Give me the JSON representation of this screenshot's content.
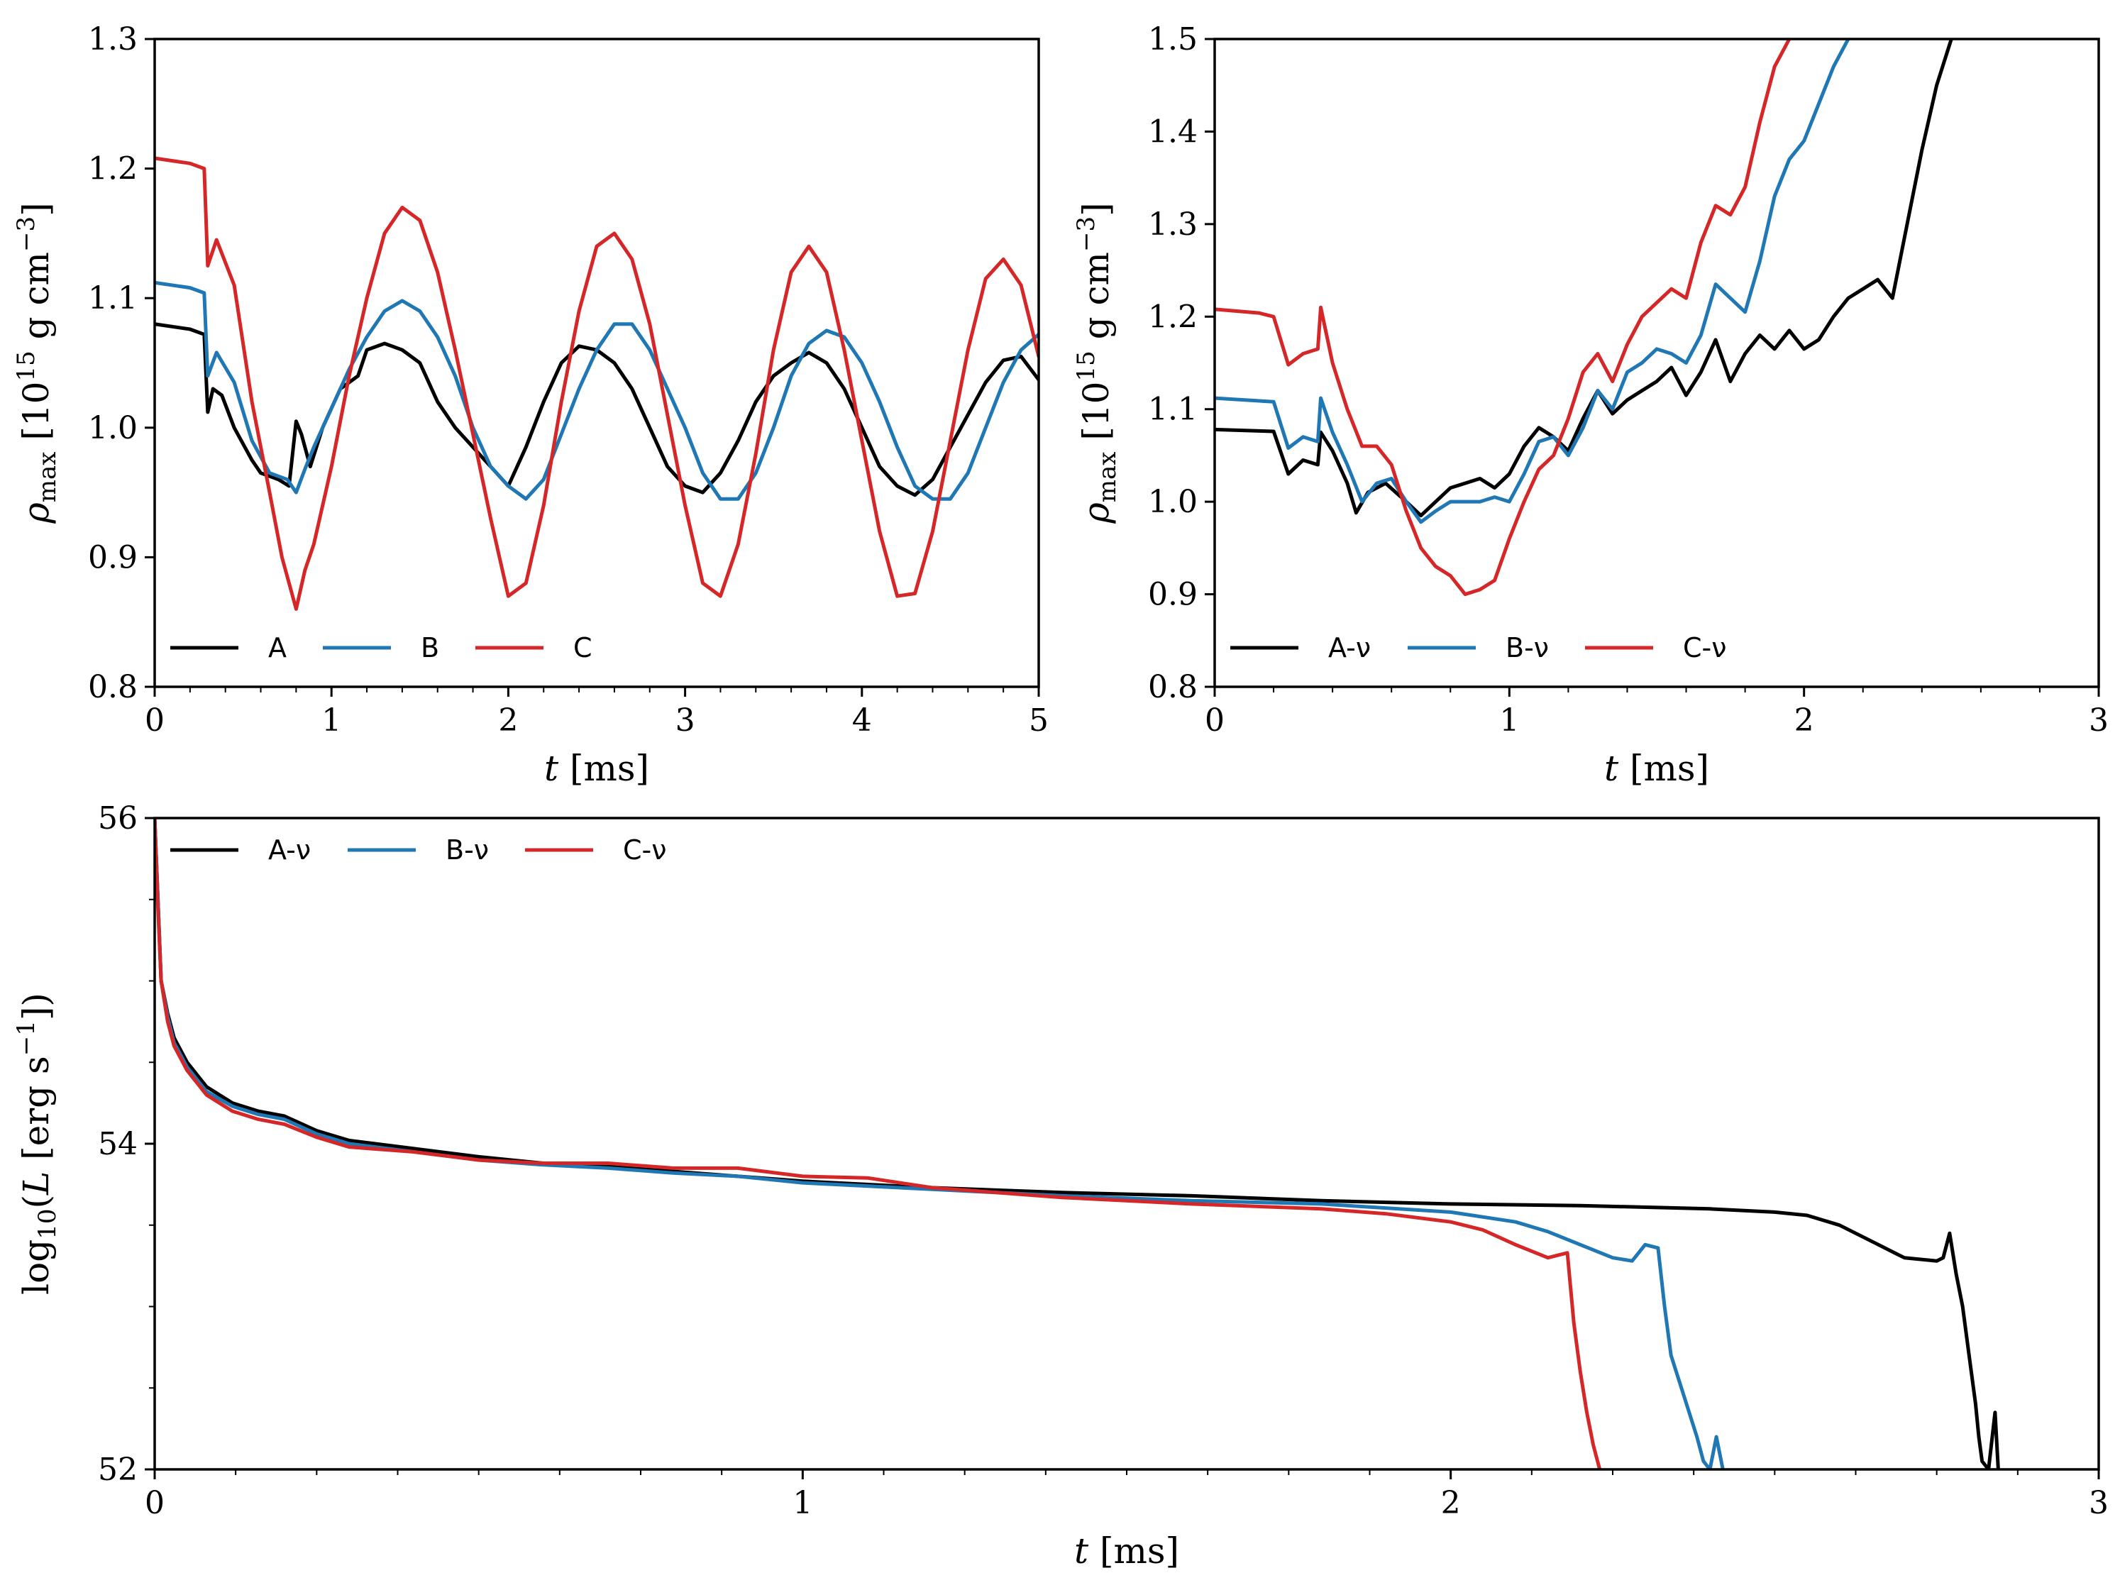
{
  "colors": {
    "A": "#000000",
    "B": "#1f77b4",
    "C": "#d62728"
  },
  "chart_data": [
    {
      "type": "line",
      "panel": "top-left",
      "xlabel_var": "t",
      "xlabel_unit": "[ms]",
      "ylabel_var": "ρ",
      "ylabel_sub": "max",
      "ylabel_unit": "[10",
      "ylabel_unit_exp": "15",
      "ylabel_unit_rest": "g cm",
      "ylabel_unit_exp2": "−3",
      "ylabel_close": "]",
      "xlim": [
        0,
        5
      ],
      "ylim": [
        0.8,
        1.3
      ],
      "xticks": [
        "0",
        "1",
        "2",
        "3",
        "4",
        "5"
      ],
      "yticks": [
        "0.8",
        "0.9",
        "1.0",
        "1.1",
        "1.2",
        "1.3"
      ],
      "legend": "bottom-left",
      "series": [
        {
          "name": "A",
          "color_key": "A",
          "x": [
            0,
            0.2,
            0.28,
            0.3,
            0.33,
            0.38,
            0.45,
            0.55,
            0.6,
            0.7,
            0.76,
            0.8,
            0.83,
            0.88,
            0.95,
            1.05,
            1.15,
            1.2,
            1.3,
            1.4,
            1.5,
            1.6,
            1.7,
            1.8,
            1.9,
            2.0,
            2.1,
            2.2,
            2.3,
            2.4,
            2.5,
            2.6,
            2.7,
            2.8,
            2.9,
            3.0,
            3.1,
            3.2,
            3.3,
            3.4,
            3.5,
            3.6,
            3.7,
            3.8,
            3.9,
            4.0,
            4.1,
            4.2,
            4.3,
            4.4,
            4.5,
            4.6,
            4.7,
            4.8,
            4.9,
            5.0
          ],
          "y": [
            1.08,
            1.076,
            1.072,
            1.012,
            1.03,
            1.025,
            1.0,
            0.975,
            0.965,
            0.96,
            0.955,
            1.005,
            0.995,
            0.97,
            1.0,
            1.03,
            1.04,
            1.06,
            1.065,
            1.06,
            1.05,
            1.02,
            1.0,
            0.985,
            0.97,
            0.955,
            0.985,
            1.02,
            1.05,
            1.063,
            1.06,
            1.05,
            1.03,
            1.0,
            0.97,
            0.955,
            0.95,
            0.965,
            0.99,
            1.02,
            1.04,
            1.05,
            1.058,
            1.05,
            1.03,
            1.0,
            0.97,
            0.955,
            0.948,
            0.96,
            0.985,
            1.01,
            1.035,
            1.052,
            1.055,
            1.037
          ]
        },
        {
          "name": "B",
          "color_key": "B",
          "x": [
            0,
            0.2,
            0.28,
            0.3,
            0.35,
            0.45,
            0.55,
            0.65,
            0.75,
            0.8,
            0.85,
            0.9,
            1.0,
            1.1,
            1.2,
            1.3,
            1.4,
            1.5,
            1.6,
            1.7,
            1.8,
            1.9,
            2.0,
            2.1,
            2.2,
            2.3,
            2.4,
            2.5,
            2.6,
            2.7,
            2.8,
            2.9,
            3.0,
            3.1,
            3.2,
            3.3,
            3.4,
            3.5,
            3.6,
            3.7,
            3.8,
            3.9,
            4.0,
            4.1,
            4.2,
            4.3,
            4.4,
            4.5,
            4.6,
            4.7,
            4.8,
            4.9,
            5.0
          ],
          "y": [
            1.112,
            1.108,
            1.104,
            1.04,
            1.058,
            1.035,
            0.99,
            0.965,
            0.96,
            0.95,
            0.968,
            0.985,
            1.015,
            1.045,
            1.07,
            1.09,
            1.098,
            1.09,
            1.07,
            1.04,
            1.0,
            0.97,
            0.955,
            0.945,
            0.96,
            0.995,
            1.03,
            1.06,
            1.08,
            1.08,
            1.06,
            1.03,
            1.0,
            0.965,
            0.945,
            0.945,
            0.965,
            1.0,
            1.04,
            1.065,
            1.075,
            1.07,
            1.05,
            1.02,
            0.985,
            0.955,
            0.945,
            0.945,
            0.965,
            1.0,
            1.035,
            1.06,
            1.072
          ]
        },
        {
          "name": "C",
          "color_key": "C",
          "x": [
            0,
            0.2,
            0.28,
            0.3,
            0.35,
            0.45,
            0.55,
            0.65,
            0.72,
            0.8,
            0.85,
            0.9,
            1.0,
            1.1,
            1.2,
            1.3,
            1.4,
            1.5,
            1.6,
            1.7,
            1.8,
            1.9,
            2.0,
            2.1,
            2.2,
            2.3,
            2.4,
            2.5,
            2.6,
            2.7,
            2.8,
            2.9,
            3.0,
            3.1,
            3.2,
            3.3,
            3.4,
            3.5,
            3.6,
            3.7,
            3.8,
            3.9,
            4.0,
            4.1,
            4.2,
            4.3,
            4.4,
            4.5,
            4.6,
            4.7,
            4.8,
            4.9,
            5.0
          ],
          "y": [
            1.208,
            1.204,
            1.2,
            1.125,
            1.145,
            1.11,
            1.02,
            0.95,
            0.9,
            0.86,
            0.89,
            0.91,
            0.97,
            1.04,
            1.1,
            1.15,
            1.17,
            1.16,
            1.12,
            1.06,
            0.995,
            0.93,
            0.87,
            0.88,
            0.94,
            1.02,
            1.09,
            1.14,
            1.15,
            1.13,
            1.08,
            1.01,
            0.94,
            0.88,
            0.87,
            0.91,
            0.98,
            1.06,
            1.12,
            1.14,
            1.12,
            1.06,
            0.99,
            0.92,
            0.87,
            0.872,
            0.92,
            0.99,
            1.06,
            1.115,
            1.13,
            1.11,
            1.055
          ]
        }
      ]
    },
    {
      "type": "line",
      "panel": "top-right",
      "xlabel_var": "t",
      "xlabel_unit": "[ms]",
      "ylabel_var": "ρ",
      "ylabel_sub": "max",
      "ylabel_unit": "[10",
      "ylabel_unit_exp": "15",
      "ylabel_unit_rest": "g cm",
      "ylabel_unit_exp2": "−3",
      "ylabel_close": "]",
      "xlim": [
        0,
        3
      ],
      "ylim": [
        0.8,
        1.5
      ],
      "xticks": [
        "0",
        "1",
        "2",
        "3"
      ],
      "yticks": [
        "0.8",
        "0.9",
        "1.0",
        "1.1",
        "1.2",
        "1.3",
        "1.4",
        "1.5"
      ],
      "legend": "bottom-left",
      "series": [
        {
          "name": "A-ν",
          "color_key": "A",
          "x": [
            0,
            0.2,
            0.25,
            0.3,
            0.35,
            0.36,
            0.4,
            0.45,
            0.48,
            0.52,
            0.58,
            0.65,
            0.7,
            0.75,
            0.8,
            0.85,
            0.9,
            0.95,
            1.0,
            1.05,
            1.1,
            1.15,
            1.2,
            1.25,
            1.3,
            1.35,
            1.4,
            1.45,
            1.5,
            1.55,
            1.6,
            1.65,
            1.7,
            1.75,
            1.8,
            1.85,
            1.9,
            1.95,
            2.0,
            2.05,
            2.1,
            2.15,
            2.2,
            2.25,
            2.3,
            2.35,
            2.4,
            2.45,
            2.5
          ],
          "y": [
            1.078,
            1.076,
            1.03,
            1.045,
            1.04,
            1.075,
            1.055,
            1.02,
            0.988,
            1.01,
            1.02,
            1.0,
            0.985,
            1.0,
            1.015,
            1.02,
            1.025,
            1.015,
            1.03,
            1.06,
            1.08,
            1.07,
            1.055,
            1.09,
            1.12,
            1.095,
            1.11,
            1.12,
            1.13,
            1.145,
            1.115,
            1.14,
            1.175,
            1.13,
            1.16,
            1.18,
            1.165,
            1.185,
            1.165,
            1.175,
            1.2,
            1.22,
            1.23,
            1.24,
            1.22,
            1.3,
            1.38,
            1.45,
            1.5
          ]
        },
        {
          "name": "B-ν",
          "color_key": "B",
          "x": [
            0,
            0.2,
            0.25,
            0.3,
            0.35,
            0.36,
            0.4,
            0.45,
            0.5,
            0.55,
            0.6,
            0.65,
            0.7,
            0.75,
            0.8,
            0.85,
            0.9,
            0.95,
            1.0,
            1.05,
            1.1,
            1.15,
            1.2,
            1.25,
            1.3,
            1.35,
            1.4,
            1.45,
            1.5,
            1.55,
            1.6,
            1.65,
            1.7,
            1.75,
            1.8,
            1.85,
            1.9,
            1.95,
            2.0,
            2.05,
            2.1,
            2.15
          ],
          "y": [
            1.112,
            1.108,
            1.058,
            1.07,
            1.065,
            1.112,
            1.075,
            1.04,
            1.0,
            1.02,
            1.025,
            1.0,
            0.978,
            0.99,
            1.0,
            1.0,
            1.0,
            1.005,
            1.0,
            1.03,
            1.065,
            1.07,
            1.05,
            1.08,
            1.12,
            1.1,
            1.14,
            1.15,
            1.165,
            1.16,
            1.15,
            1.18,
            1.235,
            1.22,
            1.205,
            1.26,
            1.33,
            1.37,
            1.39,
            1.43,
            1.47,
            1.5
          ]
        },
        {
          "name": "C-ν",
          "color_key": "C",
          "x": [
            0,
            0.15,
            0.2,
            0.25,
            0.3,
            0.35,
            0.36,
            0.4,
            0.45,
            0.5,
            0.55,
            0.6,
            0.65,
            0.7,
            0.75,
            0.8,
            0.85,
            0.9,
            0.95,
            1.0,
            1.05,
            1.1,
            1.15,
            1.2,
            1.25,
            1.3,
            1.35,
            1.4,
            1.45,
            1.5,
            1.55,
            1.6,
            1.65,
            1.7,
            1.75,
            1.8,
            1.85,
            1.9,
            1.95
          ],
          "y": [
            1.208,
            1.204,
            1.2,
            1.148,
            1.16,
            1.165,
            1.21,
            1.15,
            1.1,
            1.06,
            1.06,
            1.04,
            0.99,
            0.95,
            0.93,
            0.92,
            0.9,
            0.905,
            0.915,
            0.96,
            1.0,
            1.035,
            1.05,
            1.09,
            1.14,
            1.16,
            1.13,
            1.17,
            1.2,
            1.215,
            1.23,
            1.22,
            1.28,
            1.32,
            1.31,
            1.34,
            1.41,
            1.47,
            1.5
          ]
        }
      ]
    },
    {
      "type": "line",
      "panel": "bottom",
      "xlabel_var": "t",
      "xlabel_unit": "[ms]",
      "ylabel_pre": "log",
      "ylabel_sub": "10",
      "ylabel_mid": "(",
      "ylabel_var": "L",
      "ylabel_unit": "[erg s",
      "ylabel_unit_exp": "−1",
      "ylabel_close": "])",
      "xlim": [
        0,
        3
      ],
      "ylim": [
        52,
        56
      ],
      "xticks": [
        "0",
        "1",
        "2",
        "3"
      ],
      "yticks": [
        "52",
        "54",
        "56"
      ],
      "legend": "top-left",
      "series": [
        {
          "name": "A-ν",
          "color_key": "A",
          "x": [
            0,
            0.005,
            0.01,
            0.02,
            0.03,
            0.05,
            0.08,
            0.12,
            0.16,
            0.2,
            0.25,
            0.3,
            0.4,
            0.5,
            0.6,
            0.7,
            0.8,
            0.9,
            1.0,
            1.2,
            1.4,
            1.6,
            1.8,
            2.0,
            2.2,
            2.4,
            2.5,
            2.55,
            2.6,
            2.65,
            2.7,
            2.75,
            2.76,
            2.77,
            2.78,
            2.79,
            2.8,
            2.81,
            2.815,
            2.82,
            2.83,
            2.84,
            2.845
          ],
          "y": [
            56.0,
            55.5,
            55.0,
            54.8,
            54.65,
            54.5,
            54.35,
            54.25,
            54.2,
            54.17,
            54.08,
            54.02,
            53.97,
            53.92,
            53.88,
            53.86,
            53.83,
            53.8,
            53.77,
            53.73,
            53.7,
            53.68,
            53.65,
            53.63,
            53.62,
            53.6,
            53.58,
            53.56,
            53.5,
            53.4,
            53.3,
            53.28,
            53.3,
            53.45,
            53.2,
            53.0,
            52.7,
            52.4,
            52.2,
            52.05,
            52.0,
            52.35,
            52.0
          ]
        },
        {
          "name": "B-ν",
          "color_key": "B",
          "x": [
            0,
            0.005,
            0.01,
            0.02,
            0.03,
            0.05,
            0.08,
            0.12,
            0.16,
            0.2,
            0.25,
            0.3,
            0.4,
            0.5,
            0.6,
            0.7,
            0.8,
            0.9,
            1.0,
            1.2,
            1.4,
            1.6,
            1.8,
            2.0,
            2.1,
            2.15,
            2.2,
            2.25,
            2.28,
            2.3,
            2.32,
            2.33,
            2.34,
            2.36,
            2.38,
            2.39,
            2.4,
            2.41,
            2.42
          ],
          "y": [
            56.0,
            55.5,
            55.0,
            54.78,
            54.62,
            54.47,
            54.32,
            54.23,
            54.18,
            54.15,
            54.06,
            54.0,
            53.95,
            53.9,
            53.87,
            53.85,
            53.82,
            53.8,
            53.76,
            53.72,
            53.68,
            53.65,
            53.63,
            53.58,
            53.52,
            53.46,
            53.38,
            53.3,
            53.28,
            53.38,
            53.36,
            53.0,
            52.7,
            52.45,
            52.2,
            52.05,
            52.0,
            52.2,
            52.0
          ]
        },
        {
          "name": "C-ν",
          "color_key": "C",
          "x": [
            0,
            0.005,
            0.01,
            0.02,
            0.03,
            0.05,
            0.08,
            0.12,
            0.16,
            0.2,
            0.25,
            0.3,
            0.4,
            0.5,
            0.6,
            0.7,
            0.8,
            0.9,
            1.0,
            1.1,
            1.2,
            1.4,
            1.6,
            1.8,
            1.9,
            2.0,
            2.05,
            2.1,
            2.15,
            2.18,
            2.19,
            2.2,
            2.21,
            2.22,
            2.23
          ],
          "y": [
            56.0,
            55.45,
            55.0,
            54.75,
            54.6,
            54.45,
            54.3,
            54.2,
            54.15,
            54.12,
            54.04,
            53.98,
            53.95,
            53.9,
            53.88,
            53.88,
            53.85,
            53.85,
            53.8,
            53.79,
            53.73,
            53.67,
            53.63,
            53.6,
            53.57,
            53.52,
            53.47,
            53.38,
            53.3,
            53.33,
            52.9,
            52.6,
            52.35,
            52.15,
            52.0
          ]
        }
      ]
    }
  ]
}
